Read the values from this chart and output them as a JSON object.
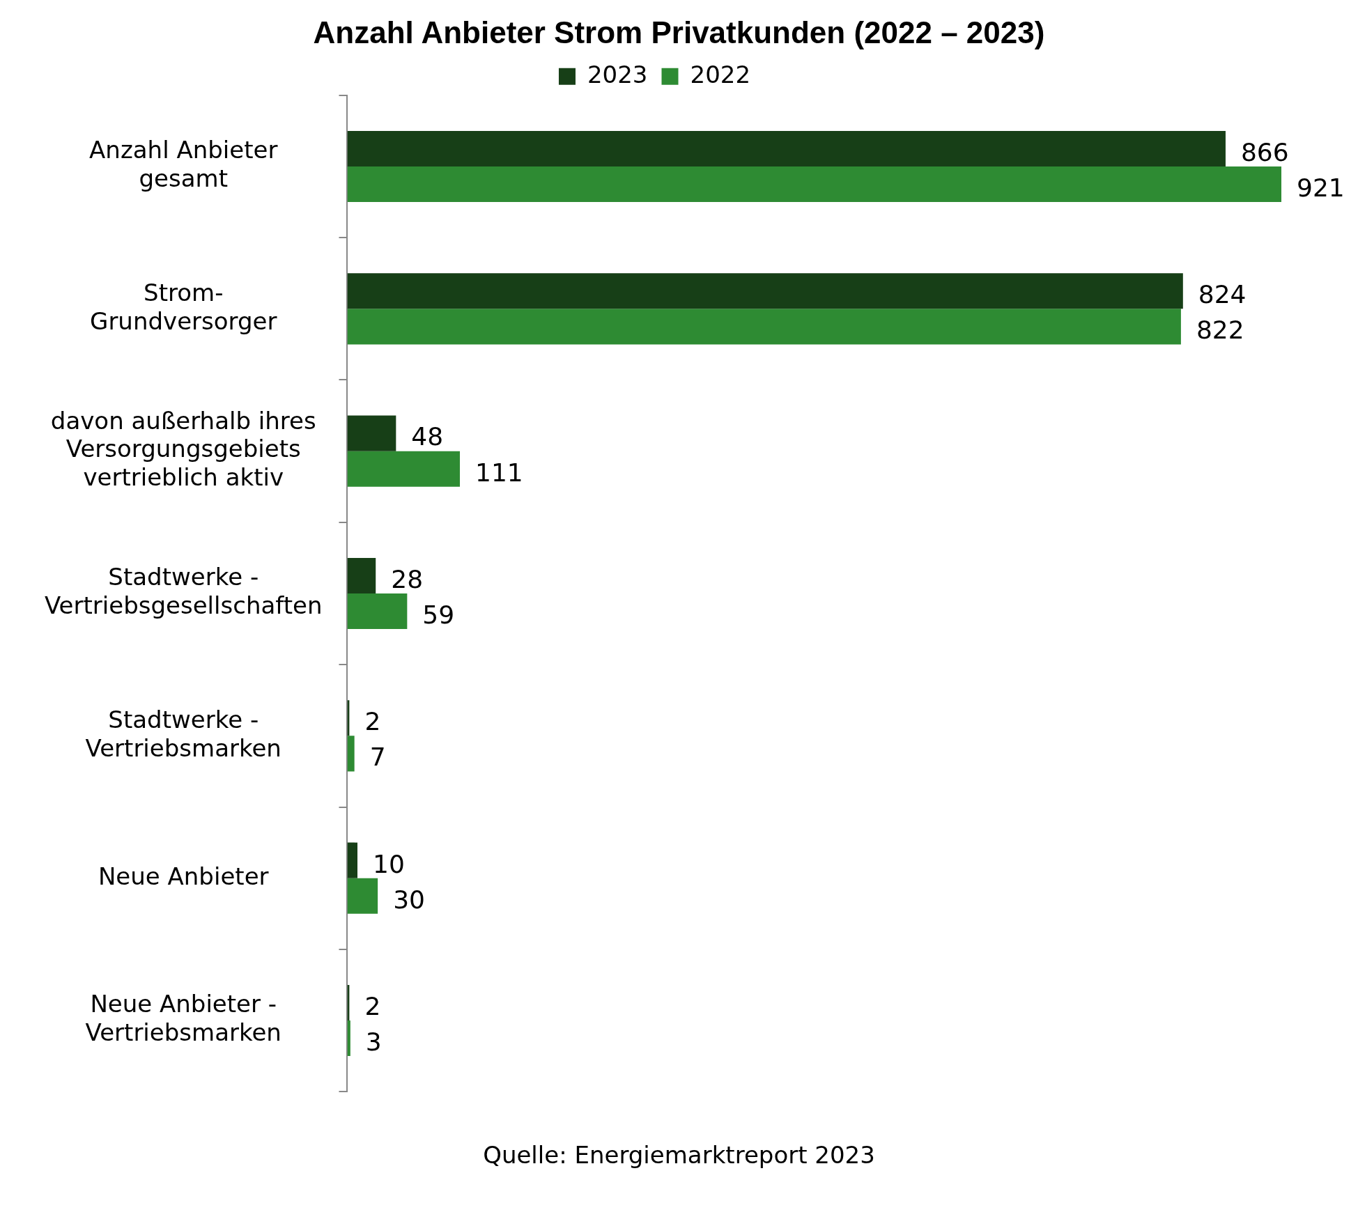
{
  "chart_data": {
    "type": "bar",
    "orientation": "horizontal",
    "title": "Anzahl Anbieter Strom Privatkunden (2022 – 2023)",
    "categories": [
      "Anzahl Anbieter\ngesamt",
      "Strom-\nGrundversorger",
      "davon außerhalb ihres\nVersorgungsgebiets\nvertrieblich aktiv",
      "Stadtwerke -\nVertriebsgesellschaften",
      "Stadtwerke -\nVertriebsmarken",
      "Neue Anbieter",
      "Neue Anbieter -\nVertriebsmarken"
    ],
    "series": [
      {
        "name": "2023",
        "color": "#173f17",
        "values": [
          866,
          824,
          48,
          28,
          2,
          10,
          2
        ]
      },
      {
        "name": "2022",
        "color": "#2e8b33",
        "values": [
          921,
          822,
          111,
          59,
          7,
          30,
          3
        ]
      }
    ],
    "data_labels": true,
    "legend": "top",
    "tick_labels": "y",
    "grid": false,
    "annotations": [
      "Quelle: Energiemarktreport 2023"
    ]
  }
}
